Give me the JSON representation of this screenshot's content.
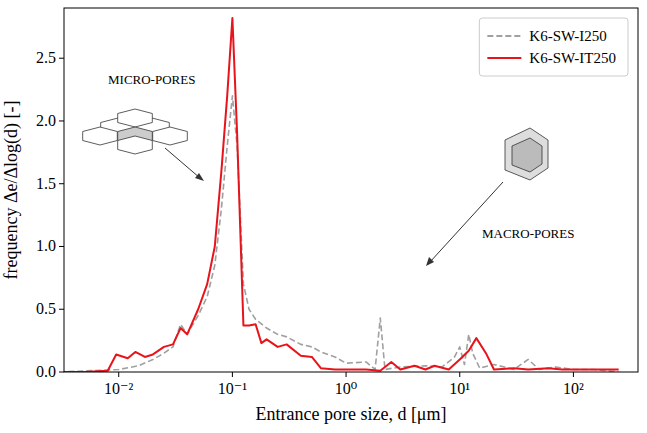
{
  "chart_data": {
    "type": "line",
    "x_label": "Entrance pore size, d [μm]",
    "y_label": "frequency Δe/Δlog(d) [-]",
    "annotations": [
      "MICRO-PORES",
      "MACRO-PORES"
    ],
    "log": "x",
    "legend": "upper right",
    "grid": false,
    "xlim": [
      0.0033,
      370
    ],
    "ylim": [
      0,
      2.9
    ],
    "xticks": [
      {
        "value": 0.01,
        "label": "10⁻²"
      },
      {
        "value": 0.1,
        "label": "10⁻¹"
      },
      {
        "value": 1,
        "label": "10⁰"
      },
      {
        "value": 10,
        "label": "10¹"
      },
      {
        "value": 100,
        "label": "10²"
      }
    ],
    "yticks": [
      {
        "value": 0,
        "label": "0.0"
      },
      0.5,
      {
        "value": 1,
        "label": "1.0"
      },
      1.5,
      {
        "value": 2,
        "label": "2.0"
      },
      2.5
    ],
    "series": [
      {
        "name": "K6-SW-I250",
        "color": "#a0a0a0",
        "line_style": "dashed",
        "x": [
          0.003,
          0.01,
          0.015,
          0.02,
          0.025,
          0.03,
          0.035,
          0.04,
          0.05,
          0.06,
          0.07,
          0.08,
          0.09,
          0.1,
          0.11,
          0.125,
          0.14,
          0.16,
          0.2,
          0.25,
          0.3,
          0.4,
          0.5,
          0.6,
          0.8,
          1,
          1.5,
          1.8,
          2,
          2.2,
          3,
          5,
          7,
          9,
          10,
          11,
          12,
          13,
          15,
          20,
          30,
          40,
          50,
          70,
          100,
          150,
          250
        ],
        "values": [
          0,
          0.02,
          0.05,
          0.1,
          0.15,
          0.2,
          0.38,
          0.3,
          0.45,
          0.6,
          0.85,
          1.3,
          1.8,
          2.2,
          1.8,
          0.7,
          0.5,
          0.42,
          0.35,
          0.3,
          0.28,
          0.22,
          0.2,
          0.16,
          0.12,
          0.07,
          0.08,
          0.02,
          0.43,
          0.02,
          0.04,
          0.05,
          0.04,
          0.12,
          0.2,
          0.06,
          0.3,
          0.15,
          0.03,
          0.06,
          0.02,
          0.1,
          0.02,
          0.04,
          0.02,
          0.02,
          0
        ]
      },
      {
        "name": "K6-SW-IT250",
        "color": "#e8141b",
        "line_style": "solid",
        "x": [
          0.003,
          0.005,
          0.008,
          0.0095,
          0.012,
          0.014,
          0.017,
          0.02,
          0.025,
          0.03,
          0.035,
          0.04,
          0.05,
          0.06,
          0.07,
          0.08,
          0.09,
          0.1,
          0.11,
          0.125,
          0.14,
          0.16,
          0.18,
          0.2,
          0.25,
          0.3,
          0.4,
          0.5,
          0.6,
          0.8,
          1,
          1.5,
          2,
          2.5,
          3,
          4,
          5,
          6,
          8,
          10,
          12,
          14,
          17,
          20,
          30,
          40,
          60,
          80,
          100,
          150,
          250
        ],
        "values": [
          0,
          0,
          0.01,
          0.14,
          0.11,
          0.16,
          0.12,
          0.14,
          0.2,
          0.22,
          0.35,
          0.3,
          0.5,
          0.7,
          1,
          1.6,
          2.2,
          2.82,
          1.9,
          0.37,
          0.37,
          0.38,
          0.23,
          0.26,
          0.2,
          0.22,
          0.13,
          0.12,
          0.03,
          0.02,
          0.02,
          0.02,
          0.01,
          0.08,
          0.02,
          0.05,
          0.02,
          0.05,
          0.02,
          0.1,
          0.17,
          0.27,
          0.15,
          0.02,
          0.03,
          0.02,
          0.03,
          0.02,
          0.02,
          0.02,
          0.02
        ]
      }
    ]
  }
}
